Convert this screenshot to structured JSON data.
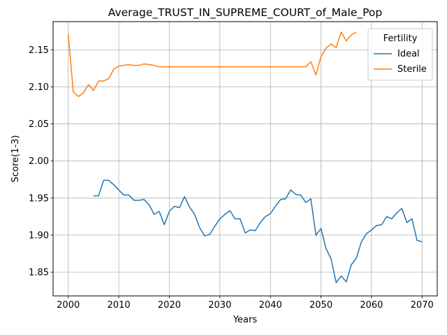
{
  "chart_data": {
    "type": "line",
    "title": "Average_TRUST_IN_SUPREME_COURT_of_Male_Pop",
    "xlabel": "Years",
    "ylabel": "Score(1-3)",
    "xlim": [
      1997,
      2073
    ],
    "ylim": [
      1.818,
      2.188
    ],
    "xticks": [
      2000,
      2010,
      2020,
      2030,
      2040,
      2050,
      2060,
      2070
    ],
    "yticks": [
      1.85,
      1.9,
      1.95,
      2.0,
      2.05,
      2.1,
      2.15
    ],
    "ytick_labels": [
      "1.85",
      "1.90",
      "1.95",
      "2.00",
      "2.05",
      "2.10",
      "2.15"
    ],
    "grid": true,
    "legend": {
      "title": "Fertility",
      "position": "top-right"
    },
    "series": [
      {
        "name": "Ideal",
        "color": "#1f77b4",
        "x": [
          2005,
          2006,
          2007,
          2008,
          2009,
          2010,
          2011,
          2012,
          2013,
          2014,
          2015,
          2016,
          2017,
          2018,
          2019,
          2020,
          2021,
          2022,
          2023,
          2024,
          2025,
          2026,
          2027,
          2028,
          2029,
          2030,
          2031,
          2032,
          2033,
          2034,
          2035,
          2036,
          2037,
          2038,
          2039,
          2040,
          2041,
          2042,
          2043,
          2044,
          2045,
          2046,
          2047,
          2048,
          2049,
          2050,
          2051,
          2052,
          2053,
          2054,
          2055,
          2056,
          2057,
          2058,
          2059,
          2060,
          2061,
          2062,
          2063,
          2064,
          2065,
          2066,
          2067,
          2068,
          2069,
          2070
        ],
        "values": [
          1.953,
          1.953,
          1.974,
          1.974,
          1.968,
          1.961,
          1.954,
          1.954,
          1.947,
          1.947,
          1.948,
          1.941,
          1.928,
          1.932,
          1.914,
          1.932,
          1.939,
          1.937,
          1.952,
          1.938,
          1.928,
          1.91,
          1.899,
          1.901,
          1.912,
          1.922,
          1.928,
          1.933,
          1.922,
          1.922,
          1.903,
          1.907,
          1.906,
          1.917,
          1.925,
          1.929,
          1.939,
          1.948,
          1.949,
          1.961,
          1.955,
          1.954,
          1.944,
          1.949,
          1.9,
          1.909,
          1.882,
          1.868,
          1.836,
          1.845,
          1.837,
          1.86,
          1.869,
          1.891,
          1.902,
          1.907,
          1.913,
          1.914,
          1.925,
          1.922,
          1.93,
          1.936,
          1.917,
          1.922,
          1.893,
          1.891
        ]
      },
      {
        "name": "Sterile",
        "color": "#ff7f0e",
        "x": [
          2000,
          2001,
          2002,
          2003,
          2004,
          2005,
          2006,
          2007,
          2008,
          2009,
          2010,
          2011,
          2012,
          2013,
          2014,
          2015,
          2016,
          2017,
          2018,
          2019,
          2020,
          2021,
          2022,
          2023,
          2024,
          2025,
          2026,
          2027,
          2028,
          2029,
          2030,
          2031,
          2032,
          2033,
          2034,
          2035,
          2036,
          2037,
          2038,
          2039,
          2040,
          2041,
          2042,
          2043,
          2044,
          2045,
          2046,
          2047,
          2048,
          2049,
          2050,
          2051,
          2052,
          2053,
          2054,
          2055,
          2056,
          2057
        ],
        "values": [
          2.171,
          2.093,
          2.087,
          2.092,
          2.103,
          2.095,
          2.108,
          2.108,
          2.111,
          2.124,
          2.128,
          2.129,
          2.13,
          2.129,
          2.129,
          2.131,
          2.13,
          2.129,
          2.127,
          2.127,
          2.127,
          2.127,
          2.127,
          2.127,
          2.127,
          2.127,
          2.127,
          2.127,
          2.127,
          2.127,
          2.127,
          2.127,
          2.127,
          2.127,
          2.127,
          2.127,
          2.127,
          2.127,
          2.127,
          2.127,
          2.127,
          2.127,
          2.127,
          2.127,
          2.127,
          2.127,
          2.127,
          2.127,
          2.134,
          2.116,
          2.141,
          2.152,
          2.158,
          2.153,
          2.174,
          2.162,
          2.17,
          2.174
        ]
      }
    ]
  }
}
